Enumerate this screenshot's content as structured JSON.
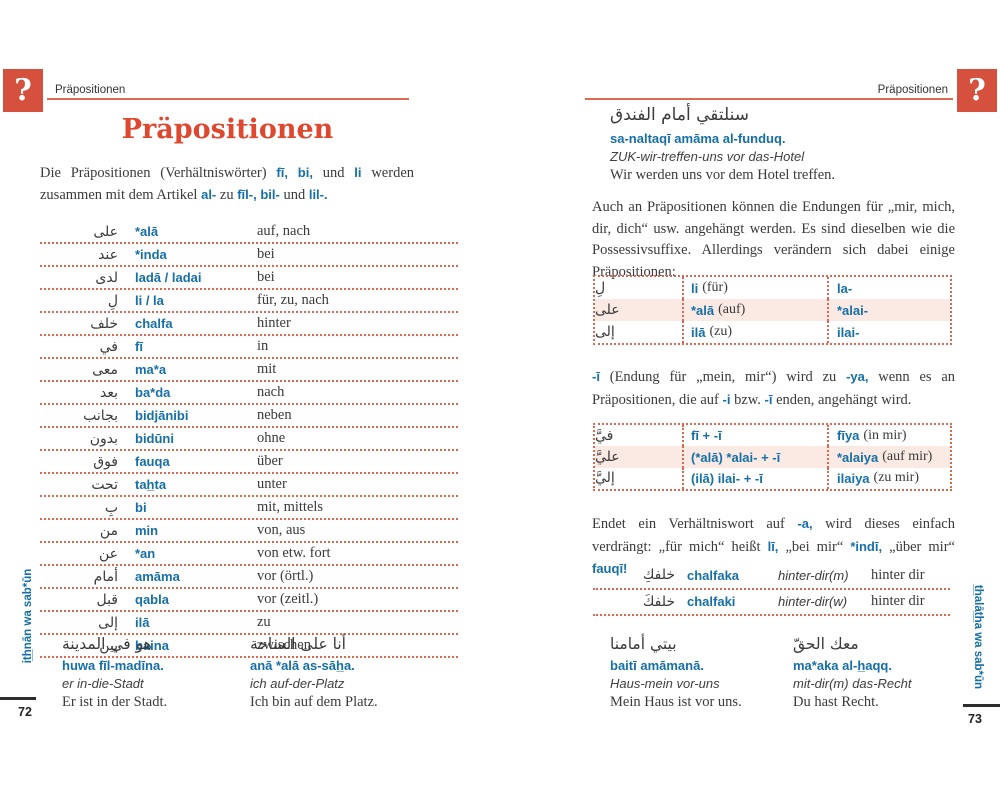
{
  "colors": {
    "accent_red_box": "#d5503d",
    "title_red": "#e0472f",
    "dotted_rule_red": "#e0674e",
    "translit_blue": "#156fa8",
    "row_shade_pink": "#fbe9e3",
    "body_text": "#3a3a3a"
  },
  "left_page": {
    "header_icon": "?",
    "header_label": "Präpositionen",
    "title": "Präpositionen",
    "intro_segments": [
      {
        "t": "Die Präpositionen (Verhältniswörter) "
      },
      {
        "t": "fī,",
        "hl": true
      },
      {
        "t": " "
      },
      {
        "t": "bi,",
        "hl": true
      },
      {
        "t": " und "
      },
      {
        "t": "li",
        "hl": true
      },
      {
        "t": " werden zusam­men mit dem Artikel "
      },
      {
        "t": "al-",
        "hl": true
      },
      {
        "t": " zu "
      },
      {
        "t": "fīl-,",
        "hl": true
      },
      {
        "t": " "
      },
      {
        "t": "bil-",
        "hl": true
      },
      {
        "t": " und "
      },
      {
        "t": "lil-.",
        "hl": true
      }
    ],
    "prepositions": [
      {
        "ar": "على",
        "tr": "*alā",
        "de": "auf, nach"
      },
      {
        "ar": "عند",
        "tr": "*inda",
        "de": "bei"
      },
      {
        "ar": "لدى",
        "tr": "ladā / ladai",
        "de": "bei"
      },
      {
        "ar": "لِ",
        "tr": "li / la",
        "de": "für, zu, nach"
      },
      {
        "ar": "خلف",
        "tr": "chalfa",
        "de": "hinter"
      },
      {
        "ar": "في",
        "tr": "fī",
        "de": "in"
      },
      {
        "ar": "معى",
        "tr": "ma*a",
        "de": "mit"
      },
      {
        "ar": "بعد",
        "tr": "ba*da",
        "de": "nach"
      },
      {
        "ar": "بجانب",
        "tr": "bidjānibi",
        "de": "neben"
      },
      {
        "ar": "بدون",
        "tr": "bidūni",
        "de": "ohne"
      },
      {
        "ar": "فوق",
        "tr": "fauqa",
        "de": "über"
      },
      {
        "ar": "تحت",
        "tr": "tah̲ta",
        "de": "unter"
      },
      {
        "ar": "بِ",
        "tr": "bi",
        "de": "mit, mittels"
      },
      {
        "ar": "من",
        "tr": "min",
        "de": "von, aus"
      },
      {
        "ar": "عن",
        "tr": "*an",
        "de": "von etw. fort"
      },
      {
        "ar": "أمام",
        "tr": "amāma",
        "de": "vor (örtl.)"
      },
      {
        "ar": "قبل",
        "tr": "qabla",
        "de": "vor (zeitl.)"
      },
      {
        "ar": "إلى",
        "tr": "ilā",
        "de": "zu"
      },
      {
        "ar": "بين",
        "tr": "baina",
        "de": "zwischen"
      }
    ],
    "examples": [
      {
        "ar": "هو في المدينة",
        "tr": "huwa fīl-madīna.",
        "gloss": "er in-die-Stadt",
        "de": "Er ist in der Stadt."
      },
      {
        "ar": "أنا على الساحة",
        "tr": "anā *alā as-sāh̲a.",
        "gloss": "ich auf-der-Platz",
        "de": "Ich bin auf dem Platz."
      }
    ],
    "sidebar_label": "it̲h̲nān wa sab*ūn",
    "page_number": "72"
  },
  "right_page": {
    "header_icon": "?",
    "header_label": "Präpositionen",
    "intro_example": {
      "ar": "سنلتقي أمام الفندق",
      "tr": "sa-naltaqī amāma al-funduq.",
      "gloss": "ZUK-wir-treffen-uns vor das-Hotel",
      "de": "Wir werden uns vor dem Hotel treffen."
    },
    "para1": "Auch an Präpositionen können die Endungen für „mir, mich, dir, dich“ usw. angehängt werden. Es sind dieselben wie die Posses­sivsuffixe. Allerdings verändern sich dabei einige Präpositionen:",
    "suffix_table": [
      {
        "ar": "لِ",
        "tr": "li",
        "note": "(für)",
        "res": "la-"
      },
      {
        "ar": "على",
        "tr": "*alā",
        "note": "(auf)",
        "res": "*alai-",
        "shaded": true
      },
      {
        "ar": "إلى",
        "tr": "ilā",
        "note": "(zu)",
        "res": "ilai-"
      }
    ],
    "para2_segments": [
      {
        "t": "-ī",
        "hl": true
      },
      {
        "t": " (Endung für „mein, mir“) wird zu "
      },
      {
        "t": "-ya,",
        "hl": true
      },
      {
        "t": " wenn es an Präpositionen, die auf "
      },
      {
        "t": "-i",
        "hl": true
      },
      {
        "t": " bzw. "
      },
      {
        "t": "-ī",
        "hl": true
      },
      {
        "t": " enden, angehängt wird."
      }
    ],
    "ya_table": [
      {
        "ar": "فيَّ",
        "formula": "fī + -ī",
        "res": "fīya",
        "note": "(in mir)"
      },
      {
        "ar": "عليَّ",
        "formula": "(*alā) *alai- + -ī",
        "res": "*alaiya",
        "note": "(auf mir)",
        "shaded": true
      },
      {
        "ar": "إليَّ",
        "formula": "(ilā) ilai- + -ī",
        "res": "ilaiya",
        "note": "(zu mir)"
      }
    ],
    "para3_segments": [
      {
        "t": "Endet ein Verhältniswort auf "
      },
      {
        "t": "-a,",
        "hl": true
      },
      {
        "t": " wird dieses einfach verdrängt: „für mich“ heißt "
      },
      {
        "t": "lī,",
        "hl": true
      },
      {
        "t": " „bei mir“ "
      },
      {
        "t": "*indī,",
        "hl": true
      },
      {
        "t": " „über mir“ "
      },
      {
        "t": "fauqī!",
        "hl": true
      }
    ],
    "chalfa_table": [
      {
        "ar": "خلفكِ",
        "tr": "chalfaka",
        "gloss": "hinter-dir(m)",
        "de": "hinter dir"
      },
      {
        "ar": "خلفكَ",
        "tr": "chalfaki",
        "gloss": "hinter-dir(w)",
        "de": "hinter dir"
      }
    ],
    "examples": [
      {
        "ar": "بيتي أمامنا",
        "tr": "baitī amāmanā.",
        "gloss": "Haus-mein vor-uns",
        "de": "Mein Haus ist vor uns."
      },
      {
        "ar": "معك الحقّ",
        "tr": "ma*aka al-h̲aqq.",
        "gloss": "mit-dir(m) das-Recht",
        "de": "Du hast Recht."
      }
    ],
    "sidebar_label": "t̲h̲alāt̲h̲a wa sab*ūn",
    "page_number": "73"
  }
}
